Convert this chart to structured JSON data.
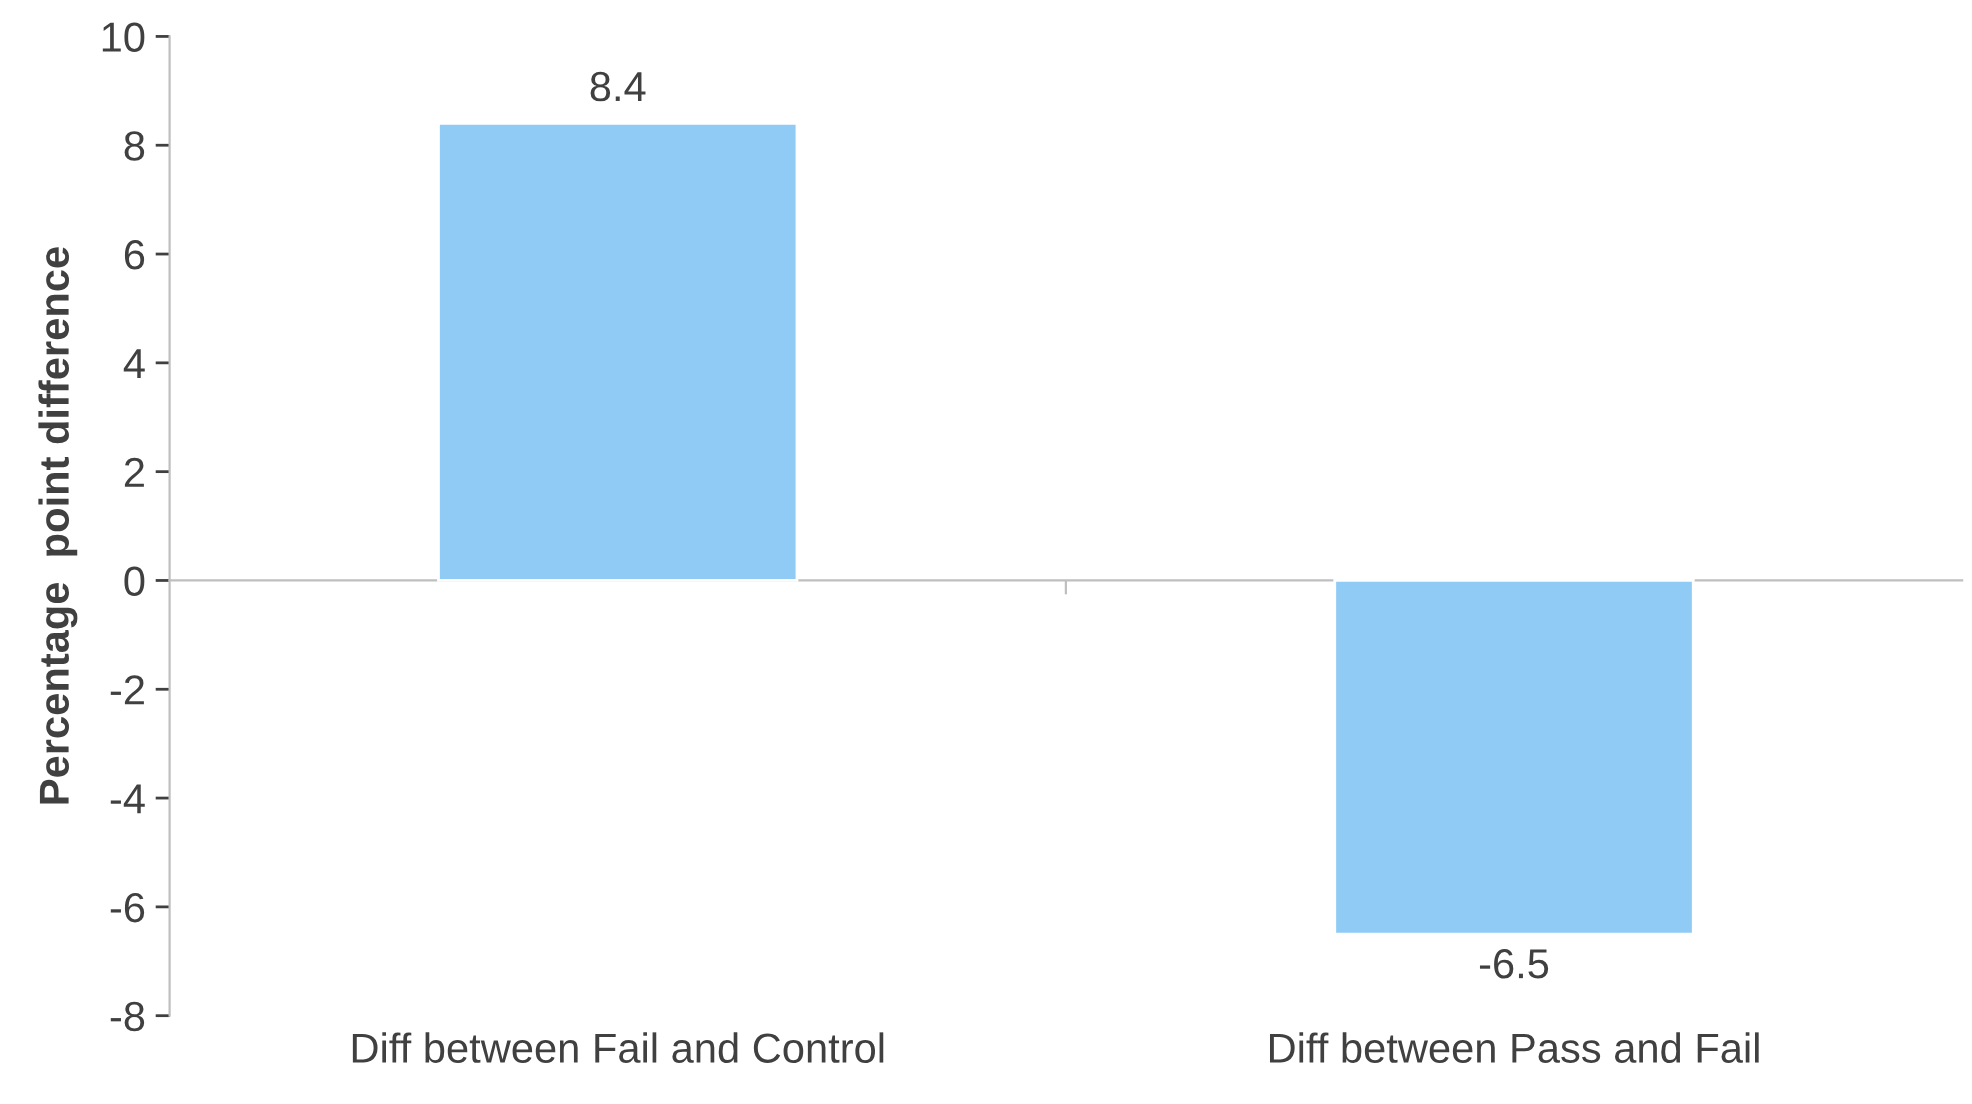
{
  "chart_data": {
    "type": "bar",
    "ylabel": "Percentage  point difference",
    "categories": [
      "Diff between Fail and Control",
      "Diff between Pass and Fail"
    ],
    "values": [
      8.4,
      -6.5
    ],
    "color": "#90cbf5",
    "data_labels": true,
    "ylim": [
      -8,
      10
    ],
    "yticks": [
      -8,
      -6,
      -4,
      -2,
      0,
      2,
      4,
      6,
      8,
      10
    ],
    "legend": false
  }
}
